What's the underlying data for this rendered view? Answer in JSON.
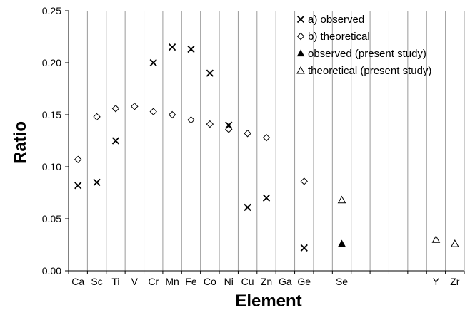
{
  "chart_data": {
    "type": "scatter",
    "xlabel": "Element",
    "ylabel": "Ratio",
    "ylim": [
      0,
      0.25
    ],
    "yticks": [
      0.0,
      0.05,
      0.1,
      0.15,
      0.2,
      0.25
    ],
    "grid": "vertical",
    "legend_position": "top-right",
    "categories": [
      "Ca",
      "Sc",
      "Ti",
      "V",
      "Cr",
      "Mn",
      "Fe",
      "Co",
      "Ni",
      "Cu",
      "Zn",
      "Ga",
      "Ge",
      "",
      "Se",
      "",
      "",
      "",
      "",
      "Y",
      "Zr"
    ],
    "series": [
      {
        "name": "a) observed",
        "marker": "x",
        "color": "#000000",
        "points": [
          {
            "x": "Ca",
            "y": 0.082
          },
          {
            "x": "Sc",
            "y": 0.085
          },
          {
            "x": "Ti",
            "y": 0.125
          },
          {
            "x": "Cr",
            "y": 0.2
          },
          {
            "x": "Mn",
            "y": 0.215
          },
          {
            "x": "Fe",
            "y": 0.213
          },
          {
            "x": "Co",
            "y": 0.19
          },
          {
            "x": "Ni",
            "y": 0.14
          },
          {
            "x": "Cu",
            "y": 0.061
          },
          {
            "x": "Zn",
            "y": 0.07
          },
          {
            "x": "Ge",
            "y": 0.022
          }
        ]
      },
      {
        "name": "b) theoretical",
        "marker": "diamond-open",
        "color": "#000000",
        "points": [
          {
            "x": "Ca",
            "y": 0.107
          },
          {
            "x": "Sc",
            "y": 0.148
          },
          {
            "x": "Ti",
            "y": 0.156
          },
          {
            "x": "V",
            "y": 0.158
          },
          {
            "x": "Cr",
            "y": 0.153
          },
          {
            "x": "Mn",
            "y": 0.15
          },
          {
            "x": "Fe",
            "y": 0.145
          },
          {
            "x": "Co",
            "y": 0.141
          },
          {
            "x": "Ni",
            "y": 0.136
          },
          {
            "x": "Cu",
            "y": 0.132
          },
          {
            "x": "Zn",
            "y": 0.128
          },
          {
            "x": "Ge",
            "y": 0.086
          }
        ]
      },
      {
        "name": "observed (present study)",
        "marker": "triangle-filled",
        "color": "#000000",
        "points": [
          {
            "x": "Se",
            "y": 0.026
          }
        ]
      },
      {
        "name": "theoretical (present study)",
        "marker": "triangle-open",
        "color": "#000000",
        "points": [
          {
            "x": "Se",
            "y": 0.068
          },
          {
            "x": "Y",
            "y": 0.03
          },
          {
            "x": "Zr",
            "y": 0.026
          }
        ]
      }
    ]
  }
}
